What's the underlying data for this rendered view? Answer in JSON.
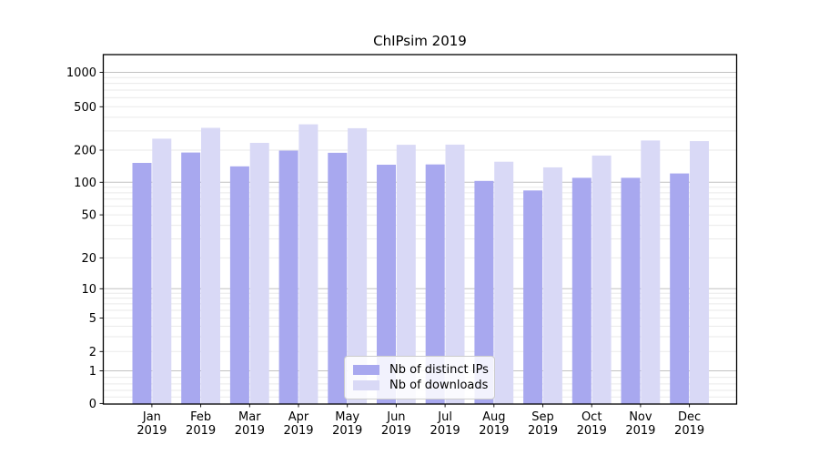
{
  "chart_data": {
    "type": "bar",
    "title": "ChIPsim 2019",
    "categories": [
      "Jan",
      "Feb",
      "Mar",
      "Apr",
      "May",
      "Jun",
      "Jul",
      "Aug",
      "Sep",
      "Oct",
      "Nov",
      "Dec"
    ],
    "category_year": "2019",
    "series": [
      {
        "name": "Nb of distinct IPs",
        "color": "#a8a8ef",
        "values": [
          152,
          190,
          141,
          198,
          189,
          146,
          147,
          103,
          84,
          110,
          110,
          121
        ]
      },
      {
        "name": "Nb of downloads",
        "color": "#d9d9f6",
        "values": [
          255,
          320,
          233,
          345,
          318,
          224,
          225,
          156,
          138,
          178,
          245,
          242
        ]
      }
    ],
    "yscale": "symlog",
    "yticks": [
      0,
      1,
      2,
      5,
      10,
      20,
      50,
      100,
      200,
      500,
      1000
    ],
    "ylim": [
      0,
      1470
    ],
    "grid": "horizontal major and minor gridlines",
    "legend_position": "inside bottom-center"
  },
  "colors": {
    "axis": "#000000",
    "major_grid": "#c2c2c2",
    "minor_grid": "#eaeaea",
    "background": "#ffffff"
  }
}
